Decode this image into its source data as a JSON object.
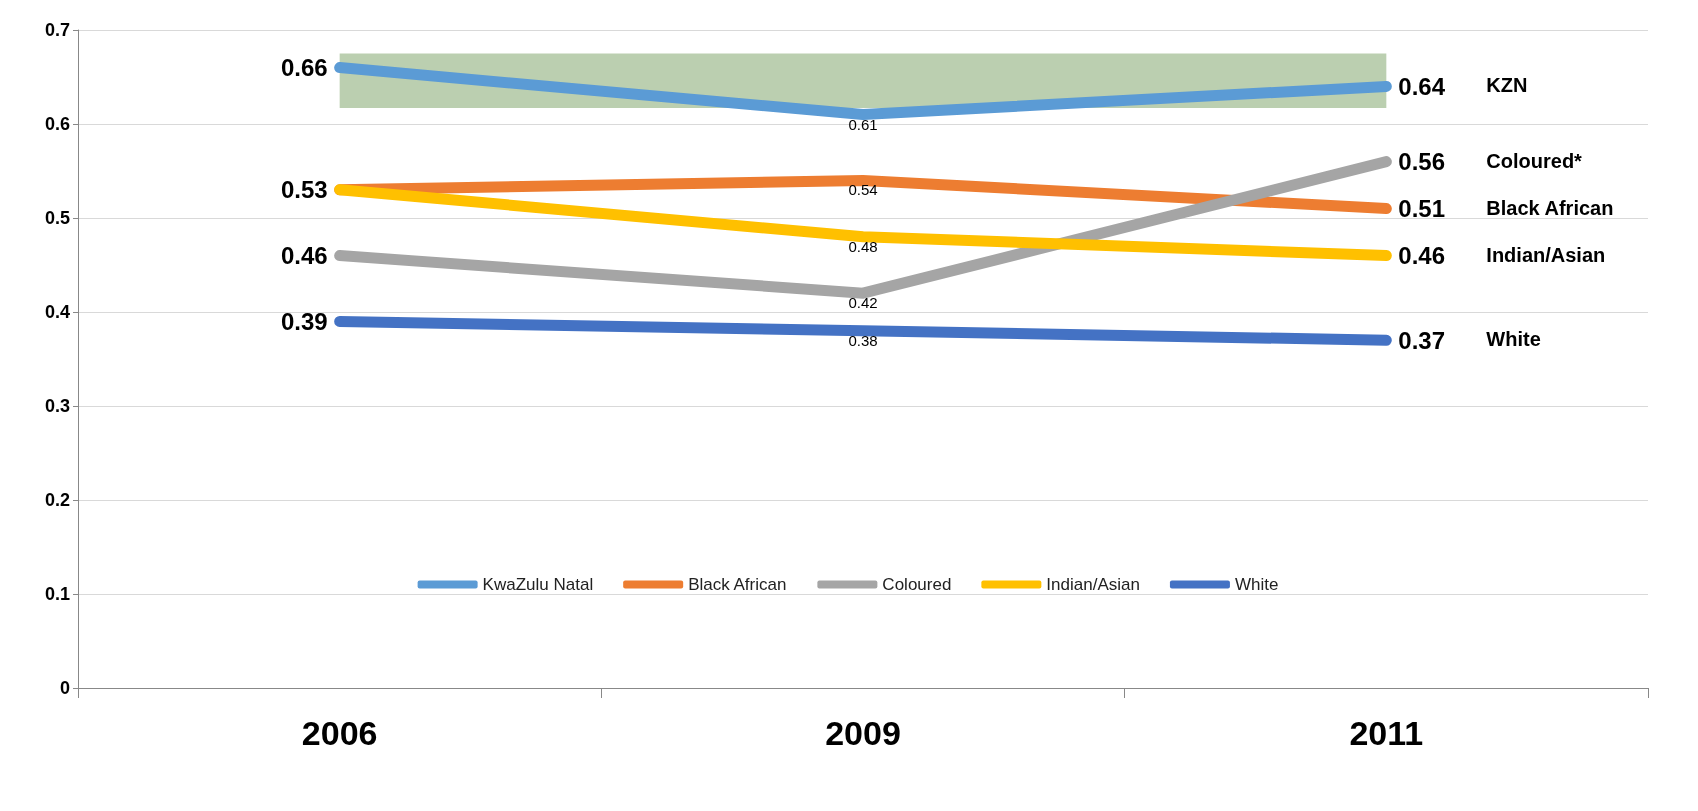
{
  "chart_data": {
    "type": "line",
    "categories": [
      "2006",
      "2009",
      "2011"
    ],
    "series": [
      {
        "name": "KwaZulu Natal",
        "color": "#5b9bd5",
        "values": [
          0.66,
          0.61,
          0.64
        ]
      },
      {
        "name": "Black African",
        "color": "#ed7d31",
        "values": [
          0.53,
          0.54,
          0.51
        ]
      },
      {
        "name": "Coloured",
        "color": "#a5a5a5",
        "values": [
          0.46,
          0.42,
          0.56
        ]
      },
      {
        "name": "Indian/Asian",
        "color": "#ffc000",
        "values": [
          0.53,
          0.48,
          0.46
        ],
        "value_labels": [
          null,
          "0.48",
          "0.46"
        ]
      },
      {
        "name": "White",
        "color": "#4472c4",
        "values": [
          0.39,
          0.38,
          0.37
        ]
      }
    ],
    "data_labels": true,
    "ylim": [
      0,
      0.7
    ],
    "yticks": [
      0,
      0.1,
      0.2,
      0.3,
      0.4,
      0.5,
      0.6,
      0.7
    ],
    "bands": [
      {
        "axis": "y",
        "from": 0.617,
        "to": 0.675,
        "color": "#bbcfb0"
      }
    ],
    "annotations": [
      "KZN",
      "Coloured*",
      "Black African",
      "Indian/Asian",
      "White"
    ],
    "grid": "y",
    "legend": "bottom",
    "marker": "none",
    "line_style": "solid"
  }
}
